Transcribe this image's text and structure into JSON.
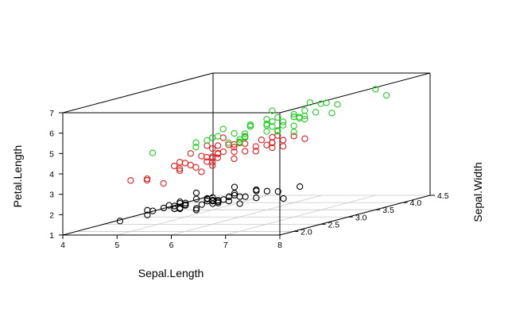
{
  "chart_data": {
    "type": "scatter3d",
    "title": "",
    "x_axis": {
      "label": "Sepal.Length",
      "range": [
        4,
        8
      ],
      "ticks": [
        "4",
        "5",
        "6",
        "7",
        "8"
      ]
    },
    "y_axis": {
      "label": "Sepal.Width",
      "range": [
        1.75,
        4.5
      ],
      "ticks": [
        "2.0",
        "2.5",
        "3.0",
        "3.5",
        "4.0",
        "4.5"
      ]
    },
    "z_axis": {
      "label": "Petal.Length",
      "range": [
        1,
        7
      ],
      "ticks": [
        "1",
        "2",
        "3",
        "4",
        "5",
        "6",
        "7"
      ]
    },
    "grid": "floor",
    "series": [
      {
        "color": "#000000",
        "points": [
          [
            5.1,
            3.5,
            1.4
          ],
          [
            4.9,
            3.0,
            1.4
          ],
          [
            4.7,
            3.2,
            1.3
          ],
          [
            4.6,
            3.1,
            1.5
          ],
          [
            5.0,
            3.6,
            1.4
          ],
          [
            5.4,
            3.9,
            1.7
          ],
          [
            4.6,
            3.4,
            1.4
          ],
          [
            5.0,
            3.4,
            1.5
          ],
          [
            4.4,
            2.9,
            1.4
          ],
          [
            4.9,
            3.1,
            1.5
          ],
          [
            5.4,
            3.7,
            1.5
          ],
          [
            4.8,
            3.4,
            1.6
          ],
          [
            4.8,
            3.0,
            1.4
          ],
          [
            4.3,
            3.0,
            1.1
          ],
          [
            5.8,
            4.0,
            1.2
          ],
          [
            5.7,
            4.4,
            1.5
          ],
          [
            5.4,
            3.9,
            1.3
          ],
          [
            5.1,
            3.5,
            1.4
          ],
          [
            5.7,
            3.8,
            1.7
          ],
          [
            5.1,
            3.8,
            1.5
          ],
          [
            5.4,
            3.4,
            1.7
          ],
          [
            5.1,
            3.7,
            1.5
          ],
          [
            4.6,
            3.6,
            1.0
          ],
          [
            5.1,
            3.3,
            1.7
          ],
          [
            4.8,
            3.4,
            1.9
          ],
          [
            5.0,
            3.0,
            1.6
          ],
          [
            5.0,
            3.4,
            1.6
          ],
          [
            5.2,
            3.5,
            1.5
          ],
          [
            5.2,
            3.4,
            1.4
          ],
          [
            4.7,
            3.2,
            1.6
          ],
          [
            4.8,
            3.1,
            1.6
          ],
          [
            5.4,
            3.4,
            1.5
          ],
          [
            5.2,
            4.1,
            1.5
          ],
          [
            5.5,
            4.2,
            1.4
          ],
          [
            4.9,
            3.1,
            1.5
          ],
          [
            5.0,
            3.2,
            1.2
          ],
          [
            5.5,
            3.5,
            1.3
          ],
          [
            4.9,
            3.6,
            1.4
          ],
          [
            4.4,
            3.0,
            1.3
          ],
          [
            5.1,
            3.4,
            1.5
          ],
          [
            5.0,
            3.5,
            1.3
          ],
          [
            4.5,
            2.3,
            1.3
          ],
          [
            4.4,
            3.2,
            1.3
          ],
          [
            5.0,
            3.5,
            1.6
          ],
          [
            5.1,
            3.8,
            1.9
          ],
          [
            4.8,
            3.0,
            1.4
          ],
          [
            5.1,
            3.8,
            1.6
          ],
          [
            4.6,
            3.2,
            1.4
          ],
          [
            5.3,
            3.7,
            1.5
          ],
          [
            5.0,
            3.3,
            1.4
          ]
        ]
      },
      {
        "color": "#e41a1c",
        "points": [
          [
            7.0,
            3.2,
            4.7
          ],
          [
            6.4,
            3.2,
            4.5
          ],
          [
            6.9,
            3.1,
            4.9
          ],
          [
            5.5,
            2.3,
            4.0
          ],
          [
            6.5,
            2.8,
            4.6
          ],
          [
            5.7,
            2.8,
            4.5
          ],
          [
            6.3,
            3.3,
            4.7
          ],
          [
            4.9,
            2.4,
            3.3
          ],
          [
            6.6,
            2.9,
            4.6
          ],
          [
            5.2,
            2.7,
            3.9
          ],
          [
            5.0,
            2.0,
            3.5
          ],
          [
            5.9,
            3.0,
            4.2
          ],
          [
            6.0,
            2.2,
            4.0
          ],
          [
            6.1,
            2.9,
            4.7
          ],
          [
            5.6,
            2.9,
            3.6
          ],
          [
            6.7,
            3.1,
            4.4
          ],
          [
            5.6,
            3.0,
            4.5
          ],
          [
            5.8,
            2.7,
            4.1
          ],
          [
            6.2,
            2.2,
            4.5
          ],
          [
            5.6,
            2.5,
            3.9
          ],
          [
            5.9,
            3.2,
            4.8
          ],
          [
            6.1,
            2.8,
            4.0
          ],
          [
            6.3,
            2.5,
            4.9
          ],
          [
            6.1,
            2.8,
            4.7
          ],
          [
            6.4,
            2.9,
            4.3
          ],
          [
            6.6,
            3.0,
            4.4
          ],
          [
            6.8,
            2.8,
            4.8
          ],
          [
            6.7,
            3.0,
            5.0
          ],
          [
            6.0,
            2.9,
            4.5
          ],
          [
            5.7,
            2.6,
            3.5
          ],
          [
            5.5,
            2.4,
            3.8
          ],
          [
            5.5,
            2.4,
            3.7
          ],
          [
            5.8,
            2.7,
            3.9
          ],
          [
            6.0,
            2.7,
            5.1
          ],
          [
            5.4,
            3.0,
            4.5
          ],
          [
            6.0,
            3.4,
            4.5
          ],
          [
            6.7,
            3.1,
            4.7
          ],
          [
            6.3,
            2.3,
            4.4
          ],
          [
            5.6,
            3.0,
            4.1
          ],
          [
            5.5,
            2.5,
            4.0
          ],
          [
            5.5,
            2.6,
            4.4
          ],
          [
            6.1,
            3.0,
            4.6
          ],
          [
            5.8,
            2.6,
            4.0
          ],
          [
            5.0,
            2.3,
            3.3
          ],
          [
            5.6,
            2.7,
            4.2
          ],
          [
            5.7,
            3.0,
            4.2
          ],
          [
            5.7,
            2.9,
            4.2
          ],
          [
            6.2,
            2.9,
            4.3
          ],
          [
            5.1,
            2.5,
            3.0
          ],
          [
            5.7,
            2.8,
            4.1
          ]
        ]
      },
      {
        "color": "#22cc22",
        "points": [
          [
            6.3,
            3.3,
            6.0
          ],
          [
            5.8,
            2.7,
            5.1
          ],
          [
            7.1,
            3.0,
            5.9
          ],
          [
            6.3,
            2.9,
            5.6
          ],
          [
            6.5,
            3.0,
            5.8
          ],
          [
            7.6,
            3.0,
            6.6
          ],
          [
            4.9,
            2.5,
            4.5
          ],
          [
            7.3,
            2.9,
            6.3
          ],
          [
            6.7,
            2.5,
            5.8
          ],
          [
            7.2,
            3.6,
            6.1
          ],
          [
            6.5,
            3.2,
            5.1
          ],
          [
            6.4,
            2.7,
            5.3
          ],
          [
            6.8,
            3.0,
            5.5
          ],
          [
            5.7,
            2.5,
            5.0
          ],
          [
            5.8,
            2.8,
            5.1
          ],
          [
            6.4,
            3.2,
            5.3
          ],
          [
            6.5,
            3.0,
            5.5
          ],
          [
            7.7,
            3.8,
            6.7
          ],
          [
            7.7,
            2.6,
            6.9
          ],
          [
            6.0,
            2.2,
            5.0
          ],
          [
            6.9,
            3.2,
            5.7
          ],
          [
            5.6,
            2.8,
            4.9
          ],
          [
            7.7,
            2.8,
            6.7
          ],
          [
            6.3,
            2.7,
            4.9
          ],
          [
            6.7,
            3.3,
            5.7
          ],
          [
            7.2,
            3.2,
            6.0
          ],
          [
            6.2,
            2.8,
            4.8
          ],
          [
            6.1,
            3.0,
            4.9
          ],
          [
            6.4,
            2.8,
            5.6
          ],
          [
            7.2,
            3.0,
            5.8
          ],
          [
            7.4,
            2.8,
            6.1
          ],
          [
            7.9,
            3.8,
            6.4
          ],
          [
            6.4,
            2.8,
            5.6
          ],
          [
            6.3,
            2.8,
            5.1
          ],
          [
            6.1,
            2.6,
            5.6
          ],
          [
            7.7,
            3.0,
            6.1
          ],
          [
            6.3,
            3.4,
            5.6
          ],
          [
            6.4,
            3.1,
            5.5
          ],
          [
            6.0,
            3.0,
            4.8
          ],
          [
            6.9,
            3.1,
            5.4
          ],
          [
            6.7,
            3.1,
            5.6
          ],
          [
            6.9,
            3.1,
            5.1
          ],
          [
            5.8,
            2.7,
            5.1
          ],
          [
            6.8,
            3.2,
            5.9
          ],
          [
            6.7,
            3.3,
            5.7
          ],
          [
            6.7,
            3.0,
            5.2
          ],
          [
            6.3,
            2.5,
            5.0
          ],
          [
            6.5,
            3.0,
            5.2
          ],
          [
            6.2,
            3.4,
            5.4
          ],
          [
            5.9,
            3.0,
            5.1
          ]
        ]
      }
    ]
  }
}
